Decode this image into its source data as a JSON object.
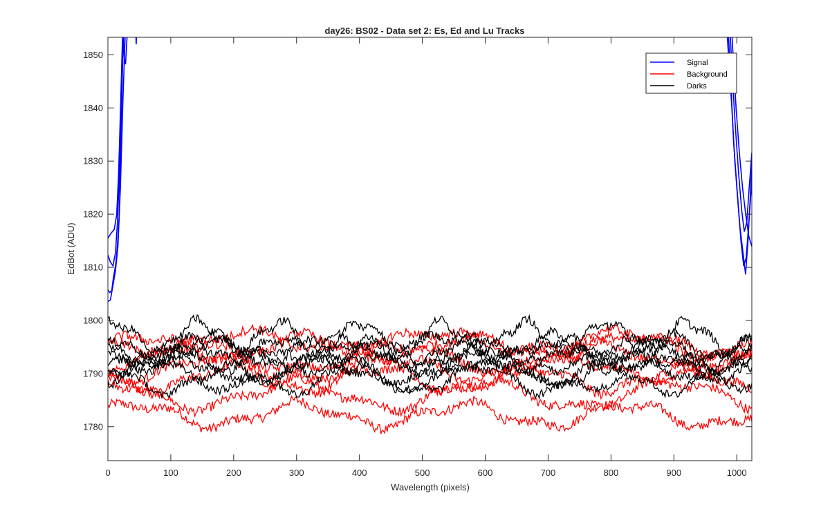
{
  "chart_data": {
    "type": "line",
    "title": "day26: BS02 - Data set 2: Es, Ed and Lu Tracks",
    "xlabel": "Wavelength (pixels)",
    "ylabel": "EdBot (ADU)",
    "xlim": [
      0,
      1024
    ],
    "ylim": [
      1773.6,
      1853.3
    ],
    "x_ticks": [
      0,
      100,
      200,
      300,
      400,
      500,
      600,
      700,
      800,
      900,
      1000
    ],
    "y_ticks": [
      1780,
      1790,
      1800,
      1810,
      1820,
      1830,
      1840,
      1850
    ],
    "grid": false,
    "legend_position": "top-right",
    "legend": [
      {
        "name": "Signal",
        "color": "#0000ff"
      },
      {
        "name": "Background",
        "color": "#ff0000"
      },
      {
        "name": "Darks",
        "color": "#000000"
      }
    ],
    "series": [
      {
        "name": "Signal",
        "color": "#0000ff",
        "points": [
          [
            0,
            1806
          ],
          [
            3,
            1805
          ],
          [
            6,
            1806
          ],
          [
            9,
            1808
          ],
          [
            12,
            1810
          ],
          [
            14,
            1812
          ],
          [
            16,
            1815
          ],
          [
            18,
            1820
          ],
          [
            20,
            1830
          ],
          [
            22,
            1842
          ],
          [
            24,
            1852
          ],
          [
            26,
            1860
          ]
        ]
      },
      {
        "name": "Signal",
        "color": "#0000ff",
        "points": [
          [
            0,
            1812
          ],
          [
            4,
            1811
          ],
          [
            8,
            1810
          ],
          [
            12,
            1813
          ],
          [
            15,
            1818
          ],
          [
            18,
            1826
          ],
          [
            21,
            1838
          ],
          [
            24,
            1850
          ],
          [
            27,
            1860
          ]
        ]
      },
      {
        "name": "Signal",
        "color": "#0000ff",
        "points": [
          [
            0,
            1815
          ],
          [
            5,
            1816
          ],
          [
            10,
            1817
          ],
          [
            14,
            1820
          ],
          [
            17,
            1828
          ],
          [
            20,
            1840
          ],
          [
            23,
            1852
          ],
          [
            26,
            1862
          ]
        ]
      },
      {
        "name": "Signal",
        "color": "#0000ff",
        "points": [
          [
            0,
            1803
          ],
          [
            4,
            1804
          ],
          [
            8,
            1806
          ],
          [
            12,
            1809
          ],
          [
            16,
            1814
          ],
          [
            20,
            1826
          ],
          [
            24,
            1842
          ],
          [
            28,
            1856
          ],
          [
            31,
            1862
          ]
        ]
      },
      {
        "name": "Signal",
        "color": "#0000ff",
        "points": [
          [
            24,
            1855
          ],
          [
            26,
            1850
          ],
          [
            28,
            1848
          ],
          [
            30,
            1852
          ],
          [
            33,
            1857
          ],
          [
            36,
            1860
          ]
        ]
      },
      {
        "name": "Signal",
        "color": "#0000ff",
        "points": [
          [
            44,
            1856
          ],
          [
            45,
            1852
          ],
          [
            46,
            1856
          ]
        ]
      },
      {
        "name": "Signal",
        "color": "#0000ff",
        "points": [
          [
            982,
            1858
          ],
          [
            987,
            1850
          ],
          [
            992,
            1840
          ],
          [
            997,
            1830
          ],
          [
            1002,
            1822
          ],
          [
            1007,
            1815
          ],
          [
            1011,
            1810
          ],
          [
            1015,
            1812
          ],
          [
            1019,
            1818
          ],
          [
            1024,
            1826
          ]
        ]
      },
      {
        "name": "Signal",
        "color": "#0000ff",
        "points": [
          [
            985,
            1858
          ],
          [
            990,
            1846
          ],
          [
            995,
            1834
          ],
          [
            1000,
            1825
          ],
          [
            1005,
            1818
          ],
          [
            1010,
            1813
          ],
          [
            1014,
            1809
          ],
          [
            1018,
            1815
          ],
          [
            1022,
            1824
          ],
          [
            1024,
            1830
          ]
        ]
      },
      {
        "name": "Signal",
        "color": "#0000ff",
        "points": [
          [
            988,
            1858
          ],
          [
            993,
            1846
          ],
          [
            998,
            1836
          ],
          [
            1003,
            1828
          ],
          [
            1008,
            1821
          ],
          [
            1012,
            1817
          ],
          [
            1016,
            1819
          ],
          [
            1020,
            1826
          ],
          [
            1024,
            1831
          ]
        ]
      },
      {
        "name": "Signal",
        "color": "#0000ff",
        "points": [
          [
            990,
            1858
          ],
          [
            994,
            1850
          ],
          [
            999,
            1840
          ],
          [
            1004,
            1832
          ],
          [
            1009,
            1825
          ],
          [
            1014,
            1820
          ],
          [
            1019,
            1816
          ],
          [
            1024,
            1814
          ]
        ]
      }
    ],
    "background_curves": [
      {
        "base": 1782.2,
        "amp": 2.0,
        "period": 260,
        "phase": 0.5,
        "noise": 0.9
      },
      {
        "base": 1786.0,
        "amp": 2.4,
        "period": 300,
        "phase": 1.6,
        "noise": 0.9
      },
      {
        "base": 1789.0,
        "amp": 2.2,
        "period": 240,
        "phase": 2.8,
        "noise": 0.9
      },
      {
        "base": 1791.0,
        "amp": 2.0,
        "period": 280,
        "phase": 4.0,
        "noise": 0.9
      },
      {
        "base": 1793.0,
        "amp": 2.3,
        "period": 320,
        "phase": 5.1,
        "noise": 0.9
      },
      {
        "base": 1795.0,
        "amp": 2.0,
        "period": 260,
        "phase": 0.2,
        "noise": 0.9
      },
      {
        "base": 1796.0,
        "amp": 1.8,
        "period": 300,
        "phase": 3.3,
        "noise": 0.9
      }
    ],
    "dark_curves": [
      {
        "base": 1797.0,
        "amp": 2.6,
        "period": 130,
        "phase": 1.0,
        "noise": 0.8
      },
      {
        "base": 1795.0,
        "amp": 2.2,
        "period": 180,
        "phase": 2.0,
        "noise": 0.8
      },
      {
        "base": 1793.5,
        "amp": 2.4,
        "period": 220,
        "phase": 3.0,
        "noise": 0.8
      },
      {
        "base": 1792.5,
        "amp": 2.0,
        "period": 160,
        "phase": 4.2,
        "noise": 0.8
      },
      {
        "base": 1791.0,
        "amp": 2.4,
        "period": 240,
        "phase": 5.0,
        "noise": 0.8
      },
      {
        "base": 1790.0,
        "amp": 2.6,
        "period": 280,
        "phase": 0.4,
        "noise": 0.8
      },
      {
        "base": 1789.0,
        "amp": 2.4,
        "period": 200,
        "phase": 1.8,
        "noise": 0.8
      },
      {
        "base": 1794.5,
        "amp": 2.0,
        "period": 150,
        "phase": 2.6,
        "noise": 0.8
      }
    ]
  }
}
